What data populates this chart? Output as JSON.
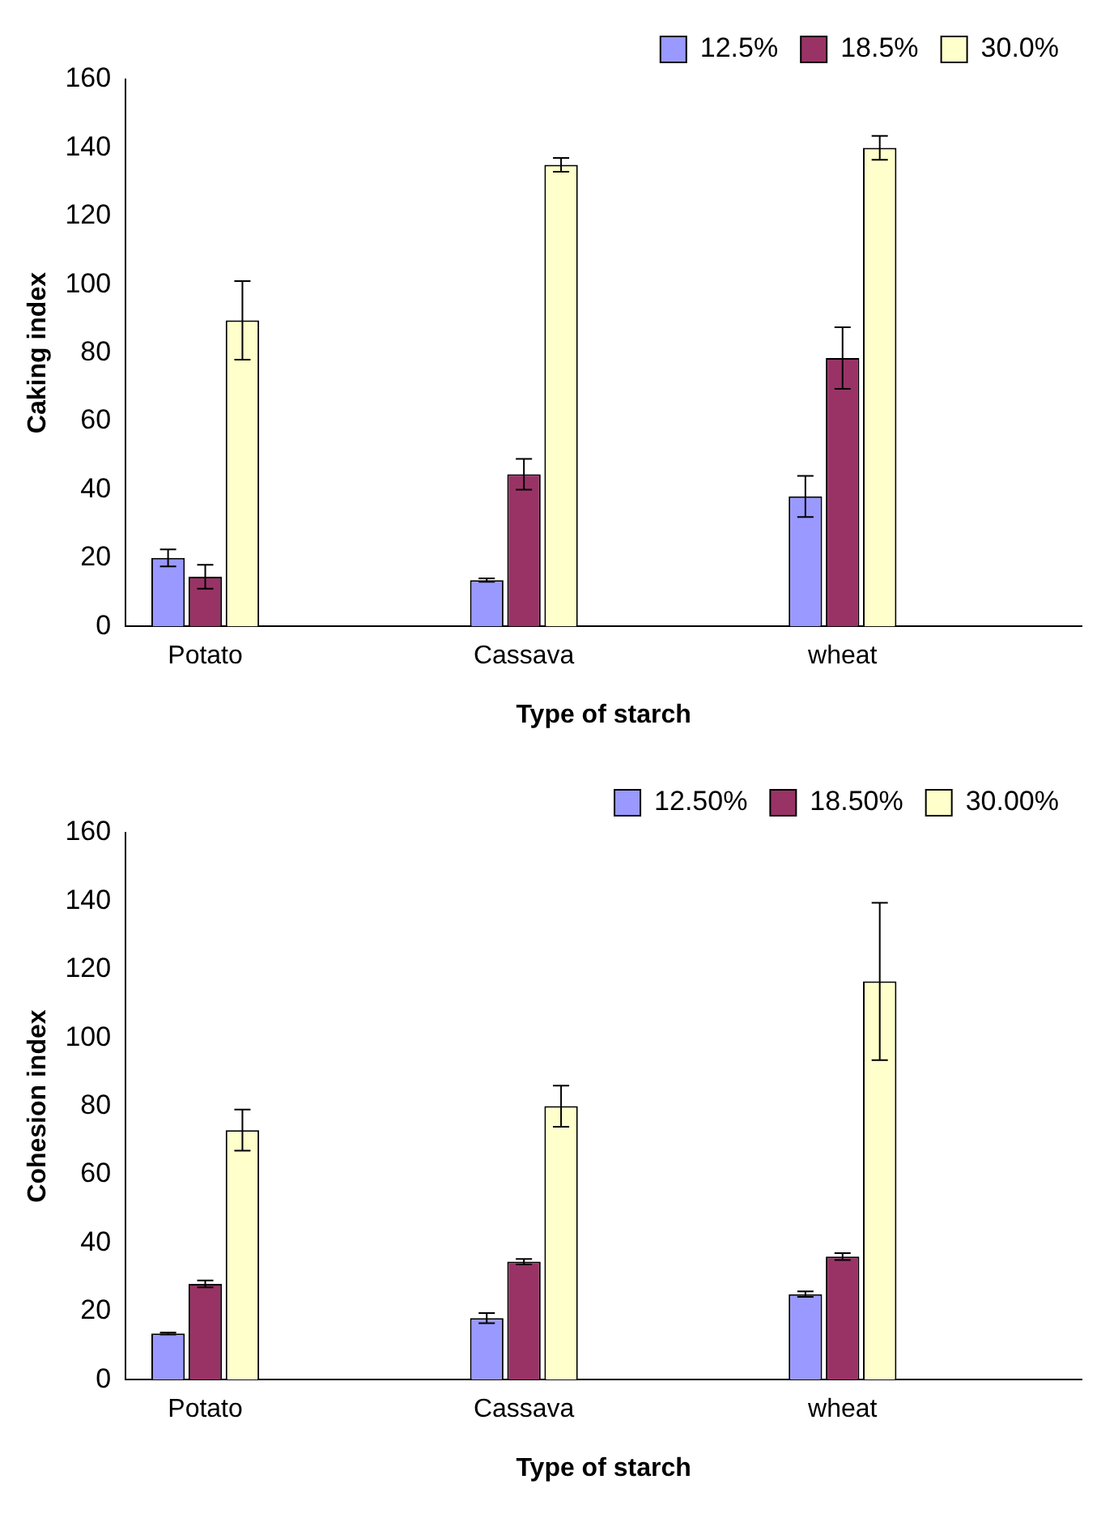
{
  "chart_data": [
    {
      "type": "bar",
      "xlabel": "Type of starch",
      "ylabel": "Caking index",
      "categories": [
        "Potato",
        null,
        "Cassava",
        null,
        "wheat",
        null
      ],
      "ylim": [
        0,
        160
      ],
      "yticks": [
        0,
        20,
        40,
        60,
        80,
        100,
        120,
        140,
        160
      ],
      "grid": false,
      "legend": "top right",
      "series": [
        {
          "name": "12.5%",
          "color": "#9999ff",
          "values": [
            20,
            null,
            13.5,
            null,
            38,
            null
          ],
          "errors": [
            2.5,
            null,
            0.5,
            null,
            6,
            null
          ]
        },
        {
          "name": "18.5%",
          "color": "#993366",
          "values": [
            14.5,
            null,
            44.5,
            null,
            78.5,
            null
          ],
          "errors": [
            3.5,
            null,
            4.5,
            null,
            9,
            null
          ]
        },
        {
          "name": "30.0%",
          "color": "#ffffcc",
          "values": [
            89.5,
            null,
            135,
            null,
            140,
            null
          ],
          "errors": [
            11.5,
            null,
            2,
            null,
            3.5,
            null
          ]
        }
      ]
    },
    {
      "type": "bar",
      "xlabel": "Type of starch",
      "ylabel": "Cohesion index",
      "categories": [
        "Potato",
        null,
        "Cassava",
        null,
        "wheat",
        null
      ],
      "ylim": [
        0,
        160
      ],
      "yticks": [
        0,
        20,
        40,
        60,
        80,
        100,
        120,
        140,
        160
      ],
      "grid": false,
      "legend": "top right",
      "series": [
        {
          "name": "12.50%",
          "color": "#9999ff",
          "values": [
            13.5,
            null,
            18,
            null,
            25,
            null
          ],
          "errors": [
            0.3,
            null,
            1.5,
            null,
            0.8,
            null
          ]
        },
        {
          "name": "18.50%",
          "color": "#993366",
          "values": [
            28,
            null,
            34.5,
            null,
            36,
            null
          ],
          "errors": [
            1,
            null,
            0.8,
            null,
            1,
            null
          ]
        },
        {
          "name": "30.00%",
          "color": "#ffffcc",
          "values": [
            73,
            null,
            80,
            null,
            116.5,
            null
          ],
          "errors": [
            6,
            null,
            6,
            null,
            23,
            null
          ]
        }
      ]
    }
  ]
}
